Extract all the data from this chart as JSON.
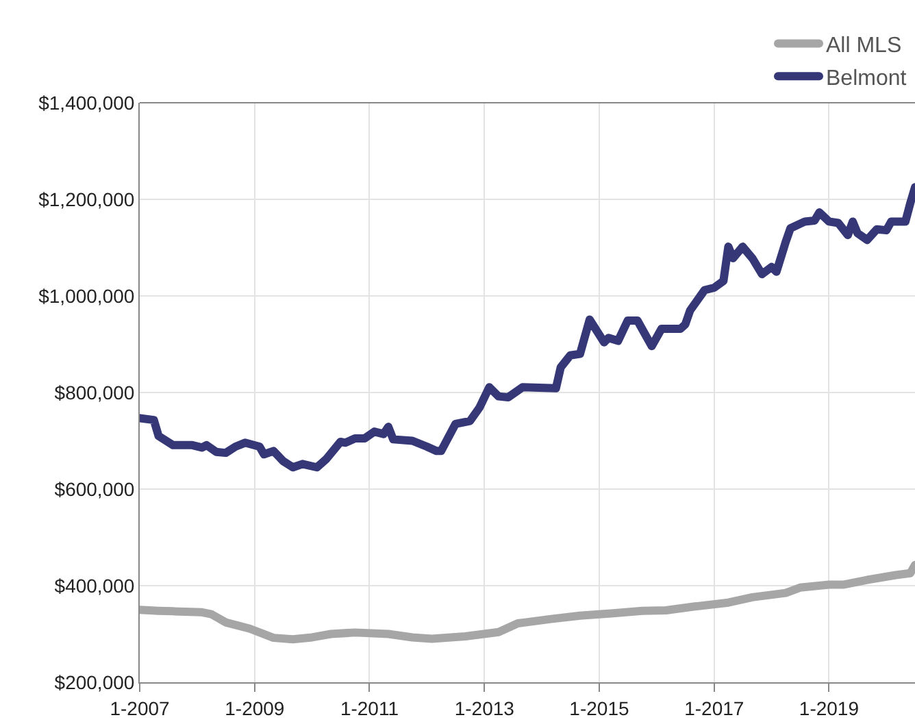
{
  "chart_data": {
    "type": "line",
    "xlim": [
      "2007-01",
      "2020-07"
    ],
    "xticks": [
      {
        "value": "2007-01",
        "label": "1-2007"
      },
      {
        "value": "2009-01",
        "label": "1-2009"
      },
      {
        "value": "2011-01",
        "label": "1-2011"
      },
      {
        "value": "2013-01",
        "label": "1-2013"
      },
      {
        "value": "2015-01",
        "label": "1-2015"
      },
      {
        "value": "2017-01",
        "label": "1-2017"
      },
      {
        "value": "2019-01",
        "label": "1-2019"
      }
    ],
    "ylim": [
      200000,
      1400000
    ],
    "yticks": [
      {
        "value": 200000,
        "label": "$200,000"
      },
      {
        "value": 400000,
        "label": "$400,000"
      },
      {
        "value": 600000,
        "label": "$600,000"
      },
      {
        "value": 800000,
        "label": "$800,000"
      },
      {
        "value": 1000000,
        "label": "$1,000,000"
      },
      {
        "value": 1200000,
        "label": "$1,200,000"
      },
      {
        "value": 1400000,
        "label": "$1,400,000"
      }
    ],
    "grid": true,
    "legend": "top right",
    "marker": "none",
    "line_style": "solid",
    "series": [
      {
        "name": "All MLS",
        "color": "#a6a6a6",
        "x": [
          "2007-01",
          "2007-05",
          "2007-08",
          "2008-02",
          "2008-04",
          "2008-07",
          "2008-12",
          "2009-05",
          "2009-09",
          "2010-01",
          "2010-05",
          "2010-10",
          "2011-05",
          "2011-10",
          "2012-02",
          "2012-09",
          "2013-04",
          "2013-08",
          "2014-03",
          "2014-09",
          "2015-04",
          "2015-10",
          "2016-03",
          "2016-09",
          "2017-04",
          "2017-09",
          "2018-04",
          "2018-07",
          "2019-01",
          "2019-04",
          "2019-09",
          "2020-03",
          "2020-06",
          "2020-07"
        ],
        "values": [
          350000,
          348000,
          347000,
          345000,
          341000,
          324000,
          311000,
          292000,
          289000,
          293000,
          300000,
          303000,
          300000,
          293000,
          290000,
          295000,
          304000,
          322000,
          331000,
          338000,
          343000,
          348000,
          349000,
          357000,
          365000,
          376000,
          385000,
          396000,
          402000,
          402000,
          412000,
          422000,
          426000,
          443000
        ]
      },
      {
        "name": "Belmont",
        "color": "#353776",
        "x": [
          "2007-01",
          "2007-04",
          "2007-05",
          "2007-08",
          "2007-12",
          "2008-02",
          "2008-03",
          "2008-05",
          "2008-07",
          "2008-09",
          "2008-11",
          "2009-02",
          "2009-03",
          "2009-05",
          "2009-07",
          "2009-09",
          "2009-11",
          "2010-02",
          "2010-04",
          "2010-07",
          "2010-08",
          "2010-10",
          "2010-12",
          "2011-02",
          "2011-04",
          "2011-05",
          "2011-06",
          "2011-10",
          "2012-01",
          "2012-03",
          "2012-04",
          "2012-07",
          "2012-10",
          "2012-12",
          "2013-02",
          "2013-04",
          "2013-06",
          "2013-09",
          "2014-04",
          "2014-05",
          "2014-07",
          "2014-09",
          "2014-11",
          "2015-02",
          "2015-03",
          "2015-05",
          "2015-07",
          "2015-09",
          "2015-12",
          "2016-02",
          "2016-06",
          "2016-07",
          "2016-08",
          "2016-11",
          "2017-01",
          "2017-03",
          "2017-04",
          "2017-05",
          "2017-07",
          "2017-09",
          "2017-11",
          "2018-01",
          "2018-02",
          "2018-04",
          "2018-05",
          "2018-08",
          "2018-10",
          "2018-11",
          "2019-01",
          "2019-03",
          "2019-05",
          "2019-06",
          "2019-07",
          "2019-09",
          "2019-11",
          "2020-01",
          "2020-02",
          "2020-05",
          "2020-06",
          "2020-07"
        ],
        "values": [
          747000,
          743000,
          710000,
          691000,
          691000,
          686000,
          691000,
          677000,
          675000,
          688000,
          696000,
          688000,
          672000,
          679000,
          658000,
          645000,
          652000,
          645000,
          662000,
          698000,
          696000,
          705000,
          705000,
          719000,
          714000,
          729000,
          703000,
          700000,
          688000,
          679000,
          679000,
          735000,
          741000,
          769000,
          811000,
          792000,
          790000,
          811000,
          809000,
          852000,
          877000,
          880000,
          951000,
          904000,
          913000,
          907000,
          949000,
          949000,
          896000,
          932000,
          932000,
          941000,
          970000,
          1012000,
          1017000,
          1031000,
          1102000,
          1078000,
          1102000,
          1078000,
          1045000,
          1060000,
          1050000,
          1112000,
          1140000,
          1154000,
          1156000,
          1173000,
          1154000,
          1151000,
          1126000,
          1154000,
          1130000,
          1116000,
          1138000,
          1136000,
          1154000,
          1154000,
          1192000,
          1225000
        ]
      }
    ]
  }
}
